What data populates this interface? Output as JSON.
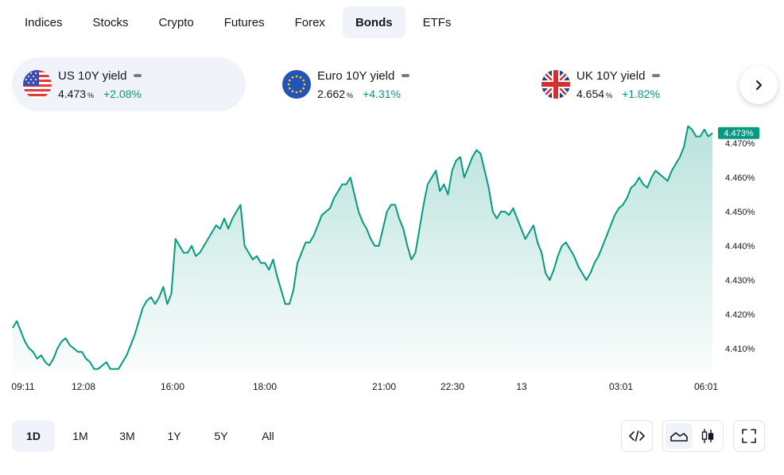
{
  "tabs": [
    {
      "label": "Indices",
      "active": false
    },
    {
      "label": "Stocks",
      "active": false
    },
    {
      "label": "Crypto",
      "active": false
    },
    {
      "label": "Futures",
      "active": false
    },
    {
      "label": "Forex",
      "active": false
    },
    {
      "label": "Bonds",
      "active": true
    },
    {
      "label": "ETFs",
      "active": false
    }
  ],
  "tickers": [
    {
      "name": "US 10Y yield",
      "value": "4.473",
      "unit": "%",
      "change": "+2.08%",
      "flag": "us-flag-icon",
      "active": true
    },
    {
      "name": "Euro 10Y yield",
      "value": "2.662",
      "unit": "%",
      "change": "+4.31%",
      "flag": "eu-flag-icon",
      "active": false
    },
    {
      "name": "UK 10Y yield",
      "value": "4.654",
      "unit": "%",
      "change": "+1.82%",
      "flag": "uk-flag-icon",
      "active": false
    }
  ],
  "colors": {
    "line": "#089981",
    "positive": "#089981",
    "active_bg": "#f0f3fa"
  },
  "chart_data": {
    "type": "area",
    "title": "",
    "xlabel": "",
    "ylabel": "",
    "x_tick_labels": [
      "09:11",
      "12:08",
      "16:00",
      "18:00",
      "21:00",
      "22:30",
      "13",
      "03:01",
      "06:01"
    ],
    "y_tick_labels": [
      "4.410%",
      "4.420%",
      "4.430%",
      "4.440%",
      "4.450%",
      "4.460%",
      "4.470%"
    ],
    "ylim": [
      4.403,
      4.477
    ],
    "last_value_label": "4.473%",
    "series": [
      {
        "values": [
          4.416,
          4.418,
          4.415,
          4.412,
          4.41,
          4.409,
          4.407,
          4.408,
          4.406,
          4.405,
          4.407,
          4.41,
          4.412,
          4.413,
          4.411,
          4.41,
          4.409,
          4.409,
          4.407,
          4.406,
          4.404,
          4.404,
          4.405,
          4.406,
          4.404,
          4.404,
          4.404,
          4.406,
          4.408,
          4.411,
          4.414,
          4.418,
          4.422,
          4.424,
          4.425,
          4.423,
          4.425,
          4.428,
          4.423,
          4.426,
          4.442,
          4.44,
          4.438,
          4.438,
          4.44,
          4.437,
          4.438,
          4.44,
          4.442,
          4.444,
          4.446,
          4.445,
          4.448,
          4.445,
          4.448,
          4.45,
          4.452,
          4.44,
          4.438,
          4.436,
          4.437,
          4.435,
          4.435,
          4.433,
          4.436,
          4.431,
          4.427,
          4.423,
          4.423,
          4.427,
          4.435,
          4.438,
          4.441,
          4.441,
          4.443,
          4.446,
          4.449,
          4.45,
          4.451,
          4.454,
          4.456,
          4.458,
          4.458,
          4.46,
          4.455,
          4.45,
          4.447,
          4.445,
          4.442,
          4.44,
          4.44,
          4.445,
          4.45,
          4.452,
          4.452,
          4.448,
          4.445,
          4.44,
          4.436,
          4.438,
          4.445,
          4.452,
          4.458,
          4.46,
          4.462,
          4.456,
          4.458,
          4.455,
          4.462,
          4.465,
          4.466,
          4.46,
          4.463,
          4.466,
          4.468,
          4.467,
          4.462,
          4.457,
          4.45,
          4.448,
          4.45,
          4.45,
          4.449,
          4.451,
          4.448,
          4.445,
          4.442,
          4.444,
          4.446,
          4.441,
          4.438,
          4.432,
          4.43,
          4.433,
          4.437,
          4.44,
          4.441,
          4.439,
          4.437,
          4.434,
          4.432,
          4.43,
          4.432,
          4.435,
          4.437,
          4.44,
          4.443,
          4.446,
          4.449,
          4.451,
          4.452,
          4.454,
          4.457,
          4.458,
          4.46,
          4.458,
          4.457,
          4.46,
          4.462,
          4.461,
          4.46,
          4.459,
          4.462,
          4.464,
          4.466,
          4.469,
          4.475,
          4.474,
          4.472,
          4.472,
          4.474,
          4.472,
          4.473
        ]
      }
    ]
  },
  "ranges": [
    {
      "label": "1D",
      "active": true
    },
    {
      "label": "1M",
      "active": false
    },
    {
      "label": "3M",
      "active": false
    },
    {
      "label": "1Y",
      "active": false
    },
    {
      "label": "5Y",
      "active": false
    },
    {
      "label": "All",
      "active": false
    }
  ],
  "tools": {
    "embed": "embed-code-icon",
    "area": "area-chart-icon",
    "candles": "candlestick-chart-icon",
    "fullscreen": "fullscreen-icon",
    "next": "chevron-right-icon"
  }
}
